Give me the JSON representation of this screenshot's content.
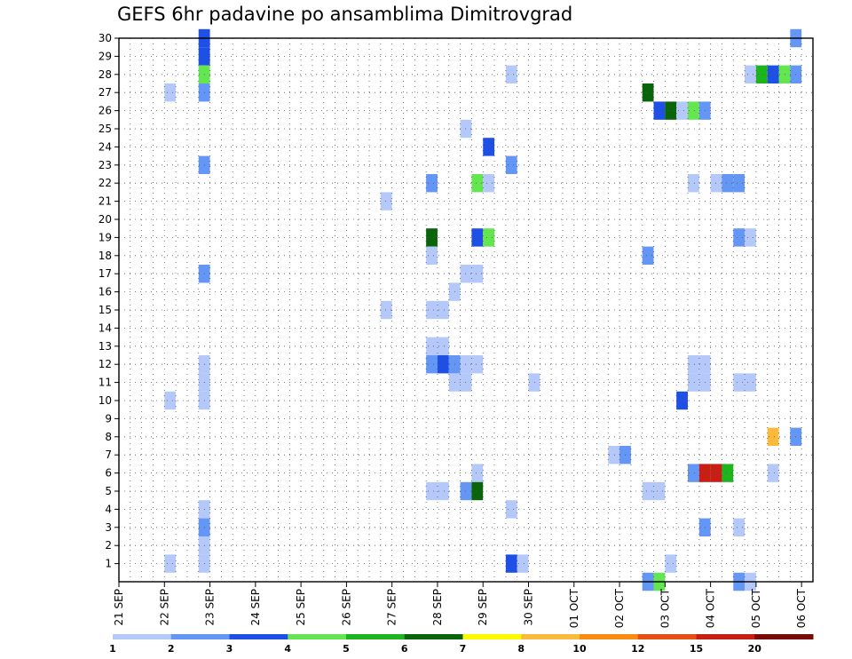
{
  "title": "GEFS 6hr padavine po ansamblima Dimitrovgrad",
  "chart_data": {
    "type": "heatmap",
    "title": "GEFS 6hr padavine po ansamblima Dimitrovgrad",
    "x_tick_labels": [
      "21 SEP",
      "22 SEP",
      "23 SEP",
      "24 SEP",
      "25 SEP",
      "26 SEP",
      "27 SEP",
      "28 SEP",
      "29 SEP",
      "30 SEP",
      "01 OCT",
      "02 OCT",
      "03 OCT",
      "04 OCT",
      "05 OCT",
      "06 OCT"
    ],
    "x_steps_per_day": 4,
    "x_range_steps": [
      0,
      61
    ],
    "y_tick_labels": [
      "1",
      "2",
      "3",
      "4",
      "5",
      "6",
      "7",
      "8",
      "9",
      "10",
      "11",
      "12",
      "13",
      "14",
      "15",
      "16",
      "17",
      "18",
      "19",
      "20",
      "21",
      "22",
      "23",
      "24",
      "25",
      "26",
      "27",
      "28",
      "29",
      "30"
    ],
    "y_range_members": [
      0,
      30
    ],
    "grid": true,
    "colorbar": {
      "labels": [
        "1",
        "2",
        "3",
        "4",
        "5",
        "6",
        "7",
        "8",
        "10",
        "12",
        "15",
        "20"
      ],
      "colors": [
        "#b4c8fa",
        "#6496f5",
        "#1e50e6",
        "#64e650",
        "#1eb41e",
        "#0a640a",
        "#fafa00",
        "#faba3c",
        "#fa8c14",
        "#e65014",
        "#c81e14",
        "#780a0a"
      ],
      "placement": "bottom"
    },
    "cells": [
      [
        7,
        30,
        2
      ],
      [
        7,
        29,
        2
      ],
      [
        7,
        28,
        3
      ],
      [
        7,
        27,
        1
      ],
      [
        7,
        23,
        1
      ],
      [
        7,
        17,
        1
      ],
      [
        7,
        12,
        0
      ],
      [
        7,
        11,
        0
      ],
      [
        7,
        10,
        0
      ],
      [
        7,
        4,
        0
      ],
      [
        7,
        3,
        1
      ],
      [
        7,
        2,
        0
      ],
      [
        7,
        1,
        0
      ],
      [
        4,
        27,
        0
      ],
      [
        4,
        10,
        0
      ],
      [
        4,
        1,
        0
      ],
      [
        23,
        21,
        0
      ],
      [
        23,
        15,
        0
      ],
      [
        27,
        22,
        1
      ],
      [
        27,
        19,
        5
      ],
      [
        27,
        18,
        0
      ],
      [
        27,
        15,
        0
      ],
      [
        28,
        15,
        0
      ],
      [
        27,
        13,
        0
      ],
      [
        28,
        13,
        0
      ],
      [
        27,
        12,
        1
      ],
      [
        28,
        12,
        2
      ],
      [
        29,
        12,
        1
      ],
      [
        30,
        12,
        0
      ],
      [
        31,
        12,
        0
      ],
      [
        29,
        11,
        0
      ],
      [
        30,
        11,
        0
      ],
      [
        27,
        5,
        0
      ],
      [
        28,
        5,
        0
      ],
      [
        29,
        16,
        0
      ],
      [
        30,
        17,
        0
      ],
      [
        31,
        17,
        0
      ],
      [
        30,
        25,
        0
      ],
      [
        31,
        22,
        3
      ],
      [
        31,
        19,
        2
      ],
      [
        31,
        6,
        0
      ],
      [
        30,
        5,
        1
      ],
      [
        31,
        5,
        5
      ],
      [
        32,
        24,
        2
      ],
      [
        32,
        22,
        0
      ],
      [
        32,
        19,
        3
      ],
      [
        34,
        28,
        0
      ],
      [
        34,
        23,
        1
      ],
      [
        34,
        4,
        0
      ],
      [
        34,
        1,
        2
      ],
      [
        35,
        1,
        0
      ],
      [
        36,
        11,
        0
      ],
      [
        43,
        7,
        0
      ],
      [
        44,
        7,
        1
      ],
      [
        46,
        27,
        5
      ],
      [
        46,
        18,
        1
      ],
      [
        46,
        5,
        0
      ],
      [
        47,
        5,
        0
      ],
      [
        47,
        26,
        2
      ],
      [
        48,
        26,
        5
      ],
      [
        49,
        26,
        0
      ],
      [
        50,
        26,
        3
      ],
      [
        51,
        26,
        1
      ],
      [
        50,
        22,
        0
      ],
      [
        50,
        12,
        0
      ],
      [
        51,
        12,
        0
      ],
      [
        50,
        11,
        0
      ],
      [
        51,
        11,
        0
      ],
      [
        49,
        10,
        2
      ],
      [
        48,
        1,
        0
      ],
      [
        50,
        6,
        1
      ],
      [
        51,
        6,
        10
      ],
      [
        52,
        6,
        10
      ],
      [
        53,
        6,
        4
      ],
      [
        51,
        3,
        1
      ],
      [
        52,
        22,
        0
      ],
      [
        53,
        22,
        1
      ],
      [
        54,
        22,
        1
      ],
      [
        54,
        19,
        1
      ],
      [
        55,
        19,
        0
      ],
      [
        54,
        11,
        0
      ],
      [
        55,
        11,
        0
      ],
      [
        54,
        3,
        0
      ],
      [
        55,
        28,
        0
      ],
      [
        56,
        28,
        4
      ],
      [
        57,
        28,
        2
      ],
      [
        58,
        28,
        3
      ],
      [
        59,
        28,
        1
      ],
      [
        57,
        8,
        7
      ],
      [
        59,
        8,
        1
      ],
      [
        59,
        30,
        1
      ],
      [
        57,
        6,
        0
      ],
      [
        46,
        0,
        1
      ],
      [
        47,
        0,
        3
      ],
      [
        54,
        0,
        1
      ],
      [
        55,
        0,
        0
      ]
    ]
  }
}
